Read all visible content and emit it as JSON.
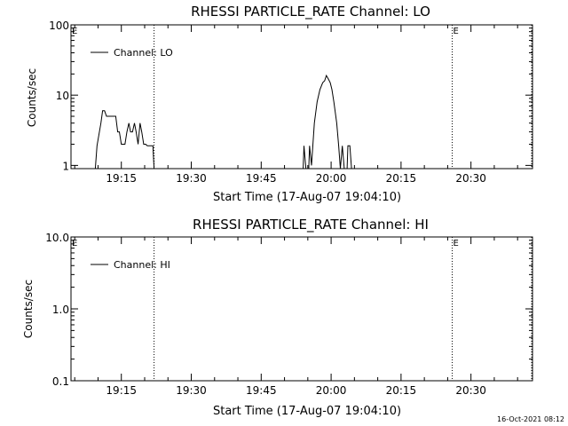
{
  "footer": {
    "timestamp": "16-Oct-2021 08:12"
  },
  "chart_data": [
    {
      "type": "line",
      "title": "RHESSI PARTICLE_RATE Channel: LO",
      "xlabel": "Start Time (17-Aug-07 19:04:10)",
      "ylabel": "Counts/sec",
      "yscale": "log",
      "ylim": [
        0.9,
        100
      ],
      "xlim_minutes": [
        19.07,
        20.72
      ],
      "x_ticks": [
        {
          "label": "19:15",
          "h": 19.25
        },
        {
          "label": "19:30",
          "h": 19.5
        },
        {
          "label": "19:45",
          "h": 19.75
        },
        {
          "label": "20:00",
          "h": 20.0
        },
        {
          "label": "20:15",
          "h": 20.25
        },
        {
          "label": "20:30",
          "h": 20.5
        }
      ],
      "y_ticks": [
        {
          "label": "1",
          "v": 1
        },
        {
          "label": "10",
          "v": 10
        },
        {
          "label": "100",
          "v": 100
        }
      ],
      "legend": {
        "label": "Channel: LO",
        "placement": "top-left"
      },
      "markers": [
        {
          "label": "E",
          "h": 19.07
        },
        {
          "label": "",
          "h": 19.367
        },
        {
          "label": "E",
          "h": 20.433
        },
        {
          "label": "",
          "h": 20.717
        }
      ],
      "series": [
        {
          "name": "Channel: LO",
          "points": [
            [
              19.157,
              0.9
            ],
            [
              19.163,
              1.9
            ],
            [
              19.177,
              4.0
            ],
            [
              19.183,
              6.0
            ],
            [
              19.19,
              6.0
            ],
            [
              19.197,
              5.0
            ],
            [
              19.23,
              5.0
            ],
            [
              19.237,
              3.0
            ],
            [
              19.243,
              3.0
            ],
            [
              19.25,
              2.0
            ],
            [
              19.263,
              2.0
            ],
            [
              19.27,
              3.0
            ],
            [
              19.277,
              4.0
            ],
            [
              19.283,
              3.0
            ],
            [
              19.29,
              3.0
            ],
            [
              19.297,
              4.0
            ],
            [
              19.303,
              3.0
            ],
            [
              19.31,
              2.0
            ],
            [
              19.317,
              4.0
            ],
            [
              19.323,
              3.0
            ],
            [
              19.33,
              2.0
            ],
            [
              19.337,
              2.0
            ],
            [
              19.343,
              1.9
            ],
            [
              19.357,
              1.9
            ],
            [
              19.363,
              1.9
            ],
            [
              19.367,
              0.9
            ],
            [
              19.9,
              0.9
            ],
            [
              19.903,
              1.9
            ],
            [
              19.91,
              0.9
            ],
            [
              19.92,
              0.9
            ],
            [
              19.923,
              1.9
            ],
            [
              19.93,
              1.0
            ],
            [
              19.94,
              4.0
            ],
            [
              19.95,
              8.0
            ],
            [
              19.96,
              12.0
            ],
            [
              19.97,
              15.0
            ],
            [
              19.977,
              16.0
            ],
            [
              19.983,
              19.0
            ],
            [
              19.99,
              17.0
            ],
            [
              19.997,
              15.0
            ],
            [
              20.003,
              12.0
            ],
            [
              20.01,
              8.0
            ],
            [
              20.02,
              4.0
            ],
            [
              20.027,
              1.9
            ],
            [
              20.033,
              0.9
            ],
            [
              20.04,
              1.9
            ],
            [
              20.047,
              0.9
            ],
            [
              20.057,
              0.9
            ],
            [
              20.06,
              1.9
            ],
            [
              20.067,
              1.9
            ],
            [
              20.073,
              0.9
            ],
            [
              20.72,
              0.9
            ]
          ]
        }
      ]
    },
    {
      "type": "line",
      "title": "RHESSI PARTICLE_RATE Channel: HI",
      "xlabel": "Start Time (17-Aug-07 19:04:10)",
      "ylabel": "Counts/sec",
      "yscale": "log",
      "ylim": [
        0.1,
        10
      ],
      "xlim_minutes": [
        19.07,
        20.72
      ],
      "x_ticks": [
        {
          "label": "19:15",
          "h": 19.25
        },
        {
          "label": "19:30",
          "h": 19.5
        },
        {
          "label": "19:45",
          "h": 19.75
        },
        {
          "label": "20:00",
          "h": 20.0
        },
        {
          "label": "20:15",
          "h": 20.25
        },
        {
          "label": "20:30",
          "h": 20.5
        }
      ],
      "y_ticks": [
        {
          "label": "0.1",
          "v": 0.1
        },
        {
          "label": "1.0",
          "v": 1
        },
        {
          "label": "10.0",
          "v": 10
        }
      ],
      "legend": {
        "label": "Channel: HI",
        "placement": "top-left"
      },
      "markers": [
        {
          "label": "E",
          "h": 19.07
        },
        {
          "label": "",
          "h": 19.367
        },
        {
          "label": "E",
          "h": 20.433
        },
        {
          "label": "",
          "h": 20.717
        }
      ],
      "series": [
        {
          "name": "Channel: HI",
          "points": []
        }
      ]
    }
  ]
}
